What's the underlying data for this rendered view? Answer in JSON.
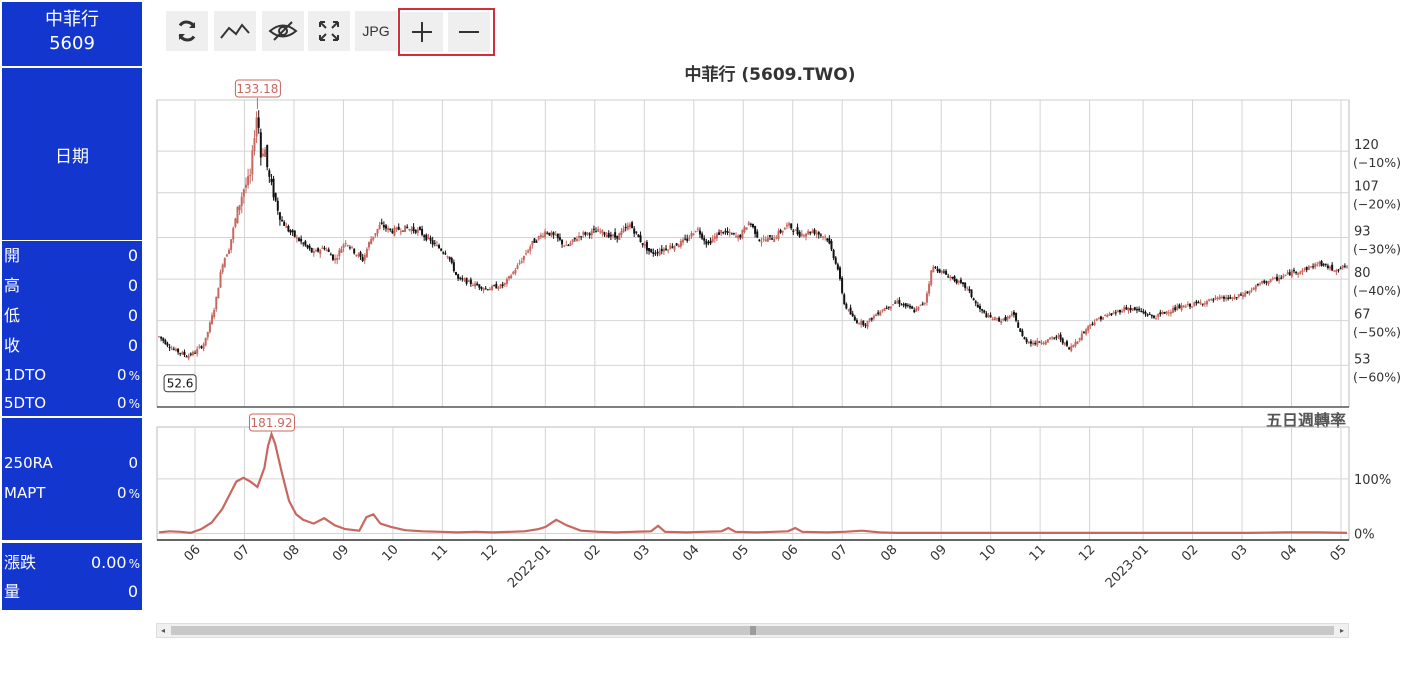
{
  "panel": {
    "name": "中菲行",
    "code": "5609",
    "date_label": "日期",
    "rows_ohlc": [
      {
        "label": "開",
        "value": "0",
        "unit": ""
      },
      {
        "label": "高",
        "value": "0",
        "unit": ""
      },
      {
        "label": "低",
        "value": "0",
        "unit": ""
      },
      {
        "label": "收",
        "value": "0",
        "unit": ""
      },
      {
        "label": "1DTO",
        "value": "0",
        "unit": "%"
      },
      {
        "label": "5DTO",
        "value": "0",
        "unit": "%"
      }
    ],
    "rows_ra": [
      {
        "label": "250RA",
        "value": "0",
        "unit": ""
      },
      {
        "label": "MAPT",
        "value": "0",
        "unit": "%"
      }
    ],
    "rows_chg": [
      {
        "label": "漲跌",
        "value": "0.00",
        "unit": "%"
      },
      {
        "label": "量",
        "value": "0",
        "unit": ""
      }
    ]
  },
  "toolbar": {
    "refresh_icon": "refresh-icon",
    "line_icon": "line-chart-icon",
    "hide_icon": "eye-off-icon",
    "fullscreen_icon": "expand-icon",
    "jpg_label": "JPG",
    "zoom_in_icon": "plus-icon",
    "zoom_out_icon": "minus-icon",
    "highlight_color": "#d42d3d"
  },
  "colors": {
    "panel_bg": "#1336cf",
    "up": "#c8675f",
    "down": "#111111",
    "turnover_line": "#c8675f"
  },
  "chart_data": [
    {
      "type": "candlestick",
      "title": "中菲行 (5609.TWO)",
      "x_labels": [
        "06",
        "07",
        "08",
        "09",
        "10",
        "11",
        "12",
        "2022-01",
        "02",
        "03",
        "04",
        "05",
        "06",
        "07",
        "08",
        "09",
        "10",
        "11",
        "12",
        "2023-01",
        "02",
        "03",
        "04",
        "05"
      ],
      "y_ticks": [
        {
          "value": 120,
          "pct": "(−10%)"
        },
        {
          "value": 107,
          "pct": "(−20%)"
        },
        {
          "value": 93,
          "pct": "(−30%)"
        },
        {
          "value": 80,
          "pct": "(−40%)"
        },
        {
          "value": 67,
          "pct": "(−50%)"
        },
        {
          "value": 53,
          "pct": "(−60%)"
        }
      ],
      "ylim": [
        40,
        136
      ],
      "max_label": "133.18",
      "min_label": "52.6",
      "close_path": [
        [
          0,
          62
        ],
        [
          0.4,
          58
        ],
        [
          0.8,
          56
        ],
        [
          1.0,
          57
        ],
        [
          1.3,
          60
        ],
        [
          1.6,
          72
        ],
        [
          1.8,
          85
        ],
        [
          2.0,
          90
        ],
        [
          2.2,
          100
        ],
        [
          2.4,
          108
        ],
        [
          2.6,
          112
        ],
        [
          2.7,
          124
        ],
        [
          2.8,
          133
        ],
        [
          2.9,
          118
        ],
        [
          3.0,
          122
        ],
        [
          3.1,
          113
        ],
        [
          3.3,
          105
        ],
        [
          3.5,
          98
        ],
        [
          3.7,
          95
        ],
        [
          4.0,
          92
        ],
        [
          4.4,
          88
        ],
        [
          4.7,
          90
        ],
        [
          5.0,
          86
        ],
        [
          5.3,
          92
        ],
        [
          5.6,
          88
        ],
        [
          5.8,
          86
        ],
        [
          6.0,
          92
        ],
        [
          6.3,
          97
        ],
        [
          6.6,
          95
        ],
        [
          7.0,
          96
        ],
        [
          7.4,
          95
        ],
        [
          7.8,
          91
        ],
        [
          8.2,
          88
        ],
        [
          8.5,
          80
        ],
        [
          8.8,
          79
        ],
        [
          9.3,
          77
        ],
        [
          9.8,
          78
        ],
        [
          10.2,
          84
        ],
        [
          10.6,
          91
        ],
        [
          11.0,
          95
        ],
        [
          11.3,
          93
        ],
        [
          11.6,
          90
        ],
        [
          12.0,
          94
        ],
        [
          12.5,
          95
        ],
        [
          13.0,
          93
        ],
        [
          13.4,
          97
        ],
        [
          13.7,
          92
        ],
        [
          14.0,
          88
        ],
        [
          14.5,
          90
        ],
        [
          15.0,
          92
        ],
        [
          15.3,
          96
        ],
        [
          15.6,
          91
        ],
        [
          16.0,
          95
        ],
        [
          16.5,
          93
        ],
        [
          16.8,
          98
        ],
        [
          17.1,
          92
        ],
        [
          17.5,
          93
        ],
        [
          17.9,
          97
        ],
        [
          18.2,
          94
        ],
        [
          18.6,
          95
        ],
        [
          19.0,
          93
        ],
        [
          19.3,
          84
        ],
        [
          19.5,
          72
        ],
        [
          19.8,
          67
        ],
        [
          20.1,
          66
        ],
        [
          20.5,
          70
        ],
        [
          21.0,
          73
        ],
        [
          21.5,
          70
        ],
        [
          21.8,
          73
        ],
        [
          22.0,
          84
        ],
        [
          22.3,
          82
        ],
        [
          22.6,
          80
        ],
        [
          23.0,
          77
        ],
        [
          23.3,
          71
        ],
        [
          23.6,
          68
        ],
        [
          24.0,
          67
        ],
        [
          24.3,
          69
        ],
        [
          24.6,
          61
        ],
        [
          24.9,
          60
        ],
        [
          25.3,
          61
        ],
        [
          25.6,
          62
        ],
        [
          25.9,
          58
        ],
        [
          26.2,
          62
        ],
        [
          26.5,
          66
        ],
        [
          26.8,
          68
        ],
        [
          27.1,
          69
        ],
        [
          27.5,
          71
        ],
        [
          27.9,
          70
        ],
        [
          28.3,
          68
        ],
        [
          28.7,
          70
        ],
        [
          29.0,
          71
        ],
        [
          29.4,
          72
        ],
        [
          29.8,
          73
        ],
        [
          30.2,
          74
        ],
        [
          30.6,
          74
        ],
        [
          31.0,
          76
        ],
        [
          31.4,
          79
        ],
        [
          31.8,
          80
        ],
        [
          32.2,
          82
        ],
        [
          32.6,
          83
        ],
        [
          33.0,
          85
        ],
        [
          33.4,
          83
        ],
        [
          33.8,
          84
        ]
      ]
    },
    {
      "type": "line",
      "title": "五日週轉率",
      "y_ticks": [
        {
          "value": 100,
          "label": "100%"
        },
        {
          "value": 0,
          "label": "0%"
        }
      ],
      "ylim": [
        -12,
        195
      ],
      "max_label": "181.92",
      "series": [
        {
          "values": [
            [
              0,
              2
            ],
            [
              0.3,
              4
            ],
            [
              0.6,
              3
            ],
            [
              0.9,
              1
            ],
            [
              1.2,
              8
            ],
            [
              1.5,
              20
            ],
            [
              1.8,
              45
            ],
            [
              2.0,
              70
            ],
            [
              2.2,
              95
            ],
            [
              2.4,
              102
            ],
            [
              2.6,
              95
            ],
            [
              2.8,
              85
            ],
            [
              3.0,
              120
            ],
            [
              3.1,
              160
            ],
            [
              3.2,
              182
            ],
            [
              3.3,
              165
            ],
            [
              3.5,
              110
            ],
            [
              3.7,
              60
            ],
            [
              3.9,
              35
            ],
            [
              4.1,
              25
            ],
            [
              4.4,
              18
            ],
            [
              4.7,
              28
            ],
            [
              5.0,
              15
            ],
            [
              5.3,
              8
            ],
            [
              5.7,
              5
            ],
            [
              5.9,
              30
            ],
            [
              6.1,
              35
            ],
            [
              6.3,
              18
            ],
            [
              6.6,
              12
            ],
            [
              7.0,
              6
            ],
            [
              7.5,
              4
            ],
            [
              8.0,
              3
            ],
            [
              8.5,
              2
            ],
            [
              9.0,
              3
            ],
            [
              9.5,
              2
            ],
            [
              10.0,
              3
            ],
            [
              10.4,
              4
            ],
            [
              10.8,
              8
            ],
            [
              11.0,
              12
            ],
            [
              11.3,
              25
            ],
            [
              11.6,
              15
            ],
            [
              12.0,
              5
            ],
            [
              12.5,
              3
            ],
            [
              13.0,
              2
            ],
            [
              13.5,
              3
            ],
            [
              14.0,
              4
            ],
            [
              14.2,
              14
            ],
            [
              14.4,
              3
            ],
            [
              15.0,
              2
            ],
            [
              15.5,
              3
            ],
            [
              16.0,
              4
            ],
            [
              16.2,
              10
            ],
            [
              16.4,
              3
            ],
            [
              17.0,
              2
            ],
            [
              17.5,
              3
            ],
            [
              17.9,
              4
            ],
            [
              18.1,
              10
            ],
            [
              18.3,
              3
            ],
            [
              19.0,
              2
            ],
            [
              19.5,
              3
            ],
            [
              20.0,
              5
            ],
            [
              20.5,
              2
            ],
            [
              21.0,
              1
            ],
            [
              22.0,
              1
            ],
            [
              23.0,
              1
            ],
            [
              24.0,
              1
            ],
            [
              25.0,
              1
            ],
            [
              26.0,
              1
            ],
            [
              27.0,
              1
            ],
            [
              28.0,
              1
            ],
            [
              29.0,
              1
            ],
            [
              30.0,
              1
            ],
            [
              31.0,
              1
            ],
            [
              32.0,
              2
            ],
            [
              33.0,
              2
            ],
            [
              33.8,
              1
            ]
          ]
        }
      ]
    }
  ]
}
